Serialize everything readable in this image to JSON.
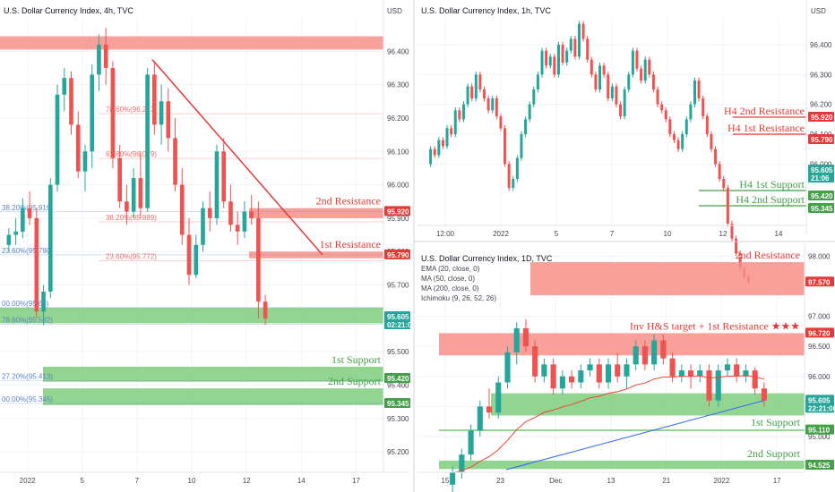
{
  "colors": {
    "up": "#26a69a",
    "down": "#ef5350",
    "res_zone": "#f88f8a",
    "sup_zone": "#7fce7d",
    "res_text": "#e53935",
    "sup_text": "#43a047",
    "fib_red": "#f06f6a",
    "fib_blue": "#5b85c5",
    "ema": "#f44336",
    "ma200": "#2962ff"
  },
  "chart_data": [
    {
      "type": "candlestick",
      "title": "U.S. Dollar Currency Index, 4h, TVC",
      "ylim": [
        95.16,
        96.5
      ],
      "currency": "USD",
      "x_ticks": [
        "2022",
        "5",
        "7",
        "10",
        "12",
        "14",
        "17"
      ],
      "y_ticks": [
        96.4,
        96.3,
        96.2,
        96.1,
        96.0,
        95.9,
        95.8,
        95.7,
        95.6,
        95.5,
        95.4,
        95.3,
        95.2
      ],
      "price_tags": [
        {
          "label": "95.920",
          "value": 95.92,
          "color": "res"
        },
        {
          "label": "95.790",
          "value": 95.79,
          "color": "res"
        },
        {
          "label": "95.605",
          "value": 95.605,
          "sub": "02:21:06",
          "color": "now"
        },
        {
          "label": "95.420",
          "value": 95.42,
          "color": "sup"
        },
        {
          "label": "95.345",
          "value": 95.345,
          "color": "sup"
        }
      ],
      "zones": [
        {
          "label": "",
          "y0": 96.405,
          "y1": 96.445,
          "type": "res"
        },
        {
          "label": "2nd Resistance",
          "y0": 95.9,
          "y1": 95.93,
          "type": "res"
        },
        {
          "label": "1st Resistance",
          "y0": 95.78,
          "y1": 95.8,
          "type": "res"
        },
        {
          "label": "",
          "y0": 95.585,
          "y1": 95.632,
          "type": "sup"
        },
        {
          "label": "1st Support",
          "y0": 95.41,
          "y1": 95.455,
          "type": "sup"
        },
        {
          "label": "2nd Support",
          "y0": 95.34,
          "y1": 95.39,
          "type": "sup"
        }
      ],
      "fib_red": [
        {
          "label": "78.60%(96.213)",
          "value": 96.213
        },
        {
          "label": "61.80%(96.079)",
          "value": 96.079
        },
        {
          "label": "38.20%(95.889)",
          "value": 95.889
        },
        {
          "label": "23.60%(95.772)",
          "value": 95.772
        }
      ],
      "fib_blue": [
        {
          "label": "38.20%(95.919)",
          "value": 95.919
        },
        {
          "label": "23.60%(95.790)",
          "value": 95.79
        },
        {
          "label": "00.00%(95.63)",
          "value": 95.632
        },
        {
          "label": "78.60%(95.582)",
          "value": 95.582
        },
        {
          "label": "27.20%(95.413)",
          "value": 95.413
        },
        {
          "label": "00.00%(95.345)",
          "value": 95.345
        }
      ],
      "trendline": {
        "from": [
          96.375,
          1
        ],
        "to": [
          95.79,
          1
        ]
      },
      "candles": [
        [
          95.82,
          95.87,
          95.8,
          95.85
        ],
        [
          95.85,
          95.9,
          95.82,
          95.86
        ],
        [
          95.86,
          95.96,
          95.84,
          95.93
        ],
        [
          95.93,
          95.98,
          95.88,
          95.9
        ],
        [
          95.9,
          95.93,
          95.6,
          95.62
        ],
        [
          95.62,
          95.7,
          95.58,
          95.68
        ],
        [
          95.68,
          96.02,
          95.66,
          96.0
        ],
        [
          96.0,
          96.3,
          95.98,
          96.27
        ],
        [
          96.27,
          96.35,
          96.22,
          96.32
        ],
        [
          96.32,
          96.34,
          96.15,
          96.18
        ],
        [
          96.18,
          96.22,
          96.02,
          96.04
        ],
        [
          96.04,
          96.12,
          95.98,
          96.1
        ],
        [
          96.1,
          96.36,
          96.05,
          96.33
        ],
        [
          96.33,
          96.45,
          96.28,
          96.42
        ],
        [
          96.42,
          96.47,
          96.3,
          96.35
        ],
        [
          96.35,
          96.37,
          96.05,
          96.08
        ],
        [
          96.08,
          96.12,
          95.93,
          95.95
        ],
        [
          95.95,
          96.0,
          95.88,
          95.92
        ],
        [
          95.92,
          96.05,
          95.9,
          96.02
        ],
        [
          96.02,
          96.1,
          95.9,
          95.93
        ],
        [
          95.93,
          96.35,
          95.92,
          96.33
        ],
        [
          96.33,
          96.37,
          96.15,
          96.18
        ],
        [
          96.18,
          96.3,
          96.12,
          96.25
        ],
        [
          96.25,
          96.29,
          96.1,
          96.14
        ],
        [
          96.14,
          96.2,
          95.98,
          96.0
        ],
        [
          96.0,
          96.05,
          95.82,
          95.85
        ],
        [
          95.85,
          95.9,
          95.7,
          95.73
        ],
        [
          95.73,
          95.85,
          95.72,
          95.82
        ],
        [
          95.82,
          95.95,
          95.8,
          95.93
        ],
        [
          95.93,
          95.98,
          95.86,
          95.9
        ],
        [
          95.9,
          96.12,
          95.88,
          96.1
        ],
        [
          96.1,
          96.14,
          95.93,
          95.95
        ],
        [
          95.95,
          96.0,
          95.86,
          95.88
        ],
        [
          95.88,
          95.92,
          95.82,
          95.86
        ],
        [
          95.86,
          95.95,
          95.84,
          95.92
        ],
        [
          95.92,
          95.97,
          95.88,
          95.9
        ],
        [
          95.9,
          95.95,
          95.6,
          95.65
        ],
        [
          95.65,
          95.67,
          95.58,
          95.6
        ]
      ]
    },
    {
      "type": "candlestick",
      "title": "U.S. Dollar Currency Index, 1h, TVC",
      "ylim": [
        95.83,
        96.49
      ],
      "currency": "USD",
      "x_ticks": [
        "12:00",
        "2022",
        "5",
        "7",
        "10",
        "12",
        "14"
      ],
      "y_ticks": [
        96.4,
        96.3,
        96.2,
        96.1,
        96.0
      ],
      "y_plain_ticks": [
        96.0
      ],
      "price_tags": [
        {
          "label": "95.920",
          "value": 95.92,
          "color": "res"
        },
        {
          "label": "95.790",
          "value": 95.79,
          "color": "res"
        },
        {
          "label": "95.605",
          "value": 95.605,
          "sub": "21:06",
          "color": "now"
        },
        {
          "label": "95.420",
          "value": 95.42,
          "color": "sup"
        },
        {
          "label": "95.345",
          "value": 95.345,
          "color": "sup"
        }
      ],
      "levels": [
        {
          "label": "H4 2nd Resistance",
          "value": 95.92,
          "type": "res"
        },
        {
          "label": "H4 1st Resistance",
          "value": 95.79,
          "type": "res"
        },
        {
          "label": "H4 1st Support",
          "value": 95.42,
          "type": "sup"
        },
        {
          "label": "H4 2nd Support",
          "value": 95.345,
          "type": "sup"
        }
      ],
      "series": [
        96.0,
        96.05,
        96.03,
        96.08,
        96.06,
        96.12,
        96.1,
        96.18,
        96.15,
        96.2,
        96.26,
        96.22,
        96.3,
        96.25,
        96.22,
        96.18,
        96.22,
        96.16,
        96.12,
        96.0,
        95.92,
        95.95,
        96.02,
        96.1,
        96.15,
        96.2,
        96.25,
        96.3,
        96.38,
        96.33,
        96.36,
        96.3,
        96.4,
        96.34,
        96.38,
        96.42,
        96.36,
        96.47,
        96.42,
        96.35,
        96.3,
        96.25,
        96.33,
        96.3,
        96.22,
        96.26,
        96.2,
        96.16,
        96.25,
        96.3,
        96.38,
        96.32,
        96.28,
        96.35,
        96.3,
        96.25,
        96.2,
        96.18,
        96.15,
        96.1,
        96.08,
        96.05,
        96.1,
        96.15,
        96.2,
        96.28,
        96.22,
        96.16,
        96.1,
        96.05,
        96.0,
        95.95,
        95.92,
        95.8,
        95.75,
        95.7,
        95.65,
        95.62,
        95.605
      ]
    },
    {
      "type": "candlestick",
      "title": "U.S. Dollar Currency Index, 1D, TVC",
      "ylim": [
        94.45,
        98.02
      ],
      "currency": "USD",
      "x_ticks": [
        "15",
        "23",
        "Dec",
        "13",
        "21",
        "2022",
        "17"
      ],
      "indicators": [
        "EMA (20, close, 0)",
        "MA (50, close, 0)",
        "MA (200, close, 0)",
        "Ichimoku (9, 26, 52, 26)"
      ],
      "y_ticks": [
        98.0,
        97.0,
        96.5,
        96.0,
        95.5,
        95.0
      ],
      "price_tags": [
        {
          "label": "97.570",
          "value": 97.57,
          "color": "res"
        },
        {
          "label": "96.720",
          "value": 96.72,
          "color": "res"
        },
        {
          "label": "95.605",
          "value": 95.605,
          "sub": "22:21:06",
          "color": "now"
        },
        {
          "label": "95.110",
          "value": 95.11,
          "color": "sup"
        },
        {
          "label": "94.525",
          "value": 94.525,
          "color": "sup"
        }
      ],
      "zones": [
        {
          "label": "2nd Resistance",
          "y0": 97.35,
          "y1": 97.9,
          "type": "res"
        },
        {
          "label": "Inv H&S target + 1st Resistance ★★★",
          "y0": 96.35,
          "y1": 96.72,
          "type": "res"
        },
        {
          "label": "",
          "y0": 95.35,
          "y1": 95.72,
          "type": "sup"
        },
        {
          "label": "1st Support",
          "y0": 95.1,
          "y1": 95.12,
          "type": "sup"
        },
        {
          "label": "2nd Support",
          "y0": 94.46,
          "y1": 94.6,
          "type": "sup"
        }
      ],
      "candles": [
        [
          94.2,
          94.5,
          94.0,
          94.4
        ],
        [
          94.4,
          94.8,
          94.3,
          94.7
        ],
        [
          94.7,
          95.2,
          94.6,
          95.1
        ],
        [
          95.1,
          95.6,
          95.0,
          95.5
        ],
        [
          95.5,
          95.8,
          95.3,
          95.4
        ],
        [
          95.4,
          96.0,
          95.3,
          95.9
        ],
        [
          95.9,
          96.5,
          95.8,
          96.4
        ],
        [
          96.4,
          96.9,
          96.2,
          96.8
        ],
        [
          96.8,
          96.95,
          96.4,
          96.5
        ],
        [
          96.5,
          96.6,
          95.9,
          96.0
        ],
        [
          96.0,
          96.3,
          95.9,
          96.2
        ],
        [
          96.2,
          96.3,
          95.7,
          95.8
        ],
        [
          95.8,
          96.1,
          95.7,
          96.0
        ],
        [
          96.0,
          96.1,
          95.8,
          95.9
        ],
        [
          95.9,
          96.2,
          95.8,
          96.1
        ],
        [
          96.1,
          96.3,
          96.0,
          96.2
        ],
        [
          96.2,
          96.3,
          95.8,
          95.9
        ],
        [
          95.9,
          96.3,
          95.8,
          96.2
        ],
        [
          96.2,
          96.4,
          95.9,
          96.0
        ],
        [
          96.0,
          96.3,
          95.8,
          96.2
        ],
        [
          96.2,
          96.6,
          96.1,
          96.5
        ],
        [
          96.5,
          96.6,
          96.1,
          96.2
        ],
        [
          96.2,
          96.7,
          96.1,
          96.6
        ],
        [
          96.6,
          96.7,
          96.2,
          96.3
        ],
        [
          96.3,
          96.4,
          95.9,
          96.0
        ],
        [
          96.0,
          96.2,
          95.9,
          96.1
        ],
        [
          96.1,
          96.2,
          95.8,
          96.0
        ],
        [
          96.0,
          96.2,
          95.9,
          96.1
        ],
        [
          96.1,
          96.2,
          95.5,
          95.6
        ],
        [
          95.6,
          96.2,
          95.5,
          96.1
        ],
        [
          96.1,
          96.3,
          96.0,
          96.2
        ],
        [
          96.2,
          96.3,
          95.9,
          96.0
        ],
        [
          96.0,
          96.2,
          95.9,
          96.1
        ],
        [
          96.1,
          96.15,
          95.7,
          95.8
        ],
        [
          95.8,
          95.9,
          95.5,
          95.6
        ]
      ]
    }
  ]
}
